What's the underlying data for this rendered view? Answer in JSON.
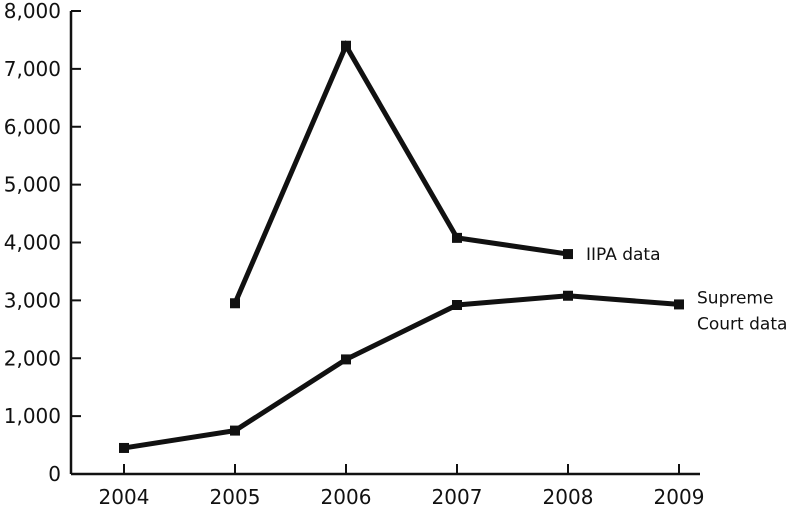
{
  "chart_data": {
    "type": "line",
    "title": "",
    "xlabel": "",
    "ylabel": "",
    "x": [
      2004,
      2005,
      2006,
      2007,
      2008,
      2009
    ],
    "x_tick_labels": [
      "2004",
      "2005",
      "2006",
      "2007",
      "2008",
      "2009"
    ],
    "y_tick_labels": [
      "0",
      "1,000",
      "2,000",
      "3,000",
      "4,000",
      "5,000",
      "6,000",
      "7,000",
      "8,000"
    ],
    "ylim": [
      0,
      8000
    ],
    "grid": false,
    "legend": "none (series labeled inline at line ends)",
    "series": [
      {
        "name": "IIPA data",
        "label_lines": [
          "IIPA data"
        ],
        "values": [
          null,
          2950,
          7400,
          4080,
          3800,
          null
        ]
      },
      {
        "name": "Supreme Court data",
        "label_lines": [
          "Supreme",
          "Court data"
        ],
        "values": [
          450,
          750,
          1980,
          2920,
          3080,
          2930
        ]
      }
    ],
    "colors": {
      "line": "#111111",
      "axis": "#111111"
    }
  }
}
